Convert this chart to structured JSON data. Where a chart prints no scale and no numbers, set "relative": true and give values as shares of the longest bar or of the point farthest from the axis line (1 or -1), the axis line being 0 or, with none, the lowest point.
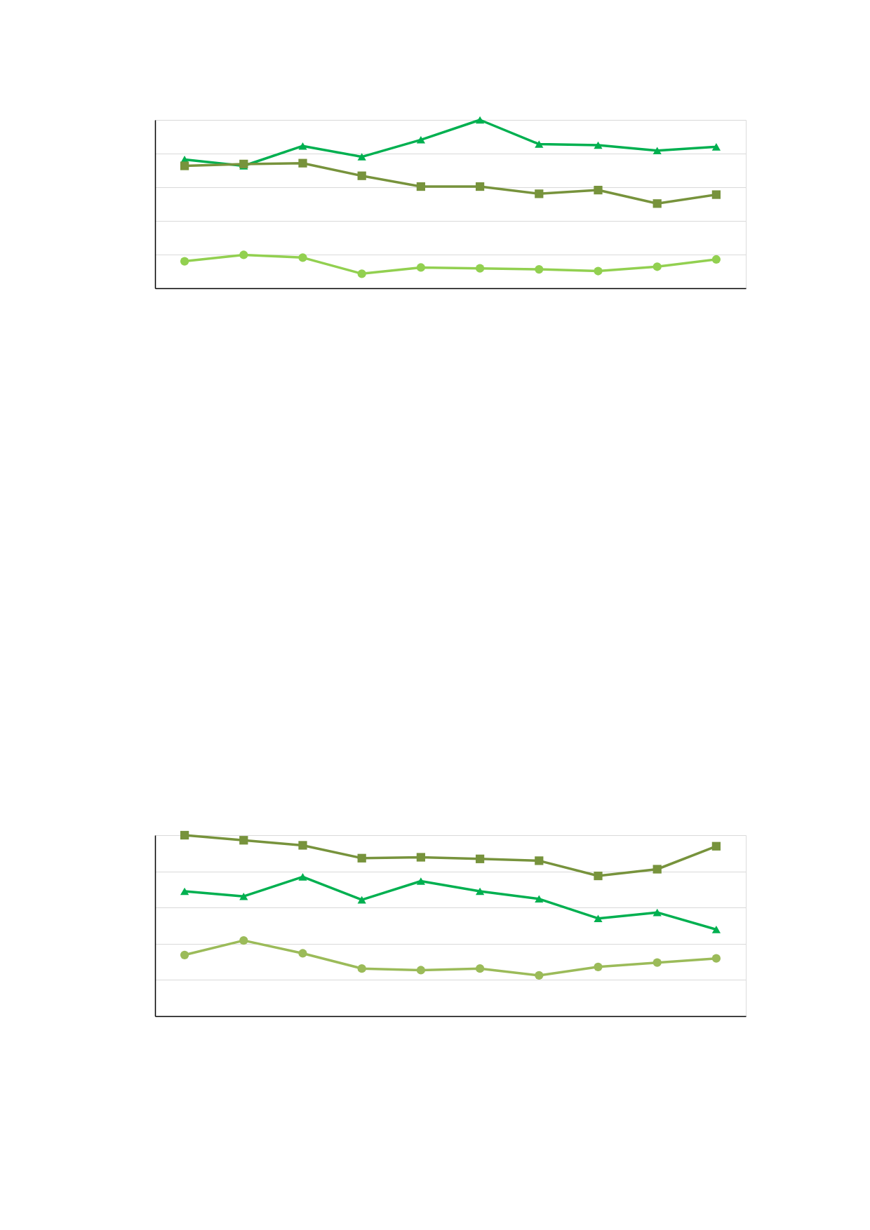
{
  "chart_data": [
    {
      "type": "line",
      "relative": true,
      "grid": "y",
      "categories": [
        null,
        null,
        null,
        null,
        null,
        null,
        null,
        null,
        null,
        null
      ],
      "series": [
        {
          "color": "#00b050",
          "marker": "triangle",
          "values": [
            0.765,
            0.727,
            0.845,
            0.781,
            0.882,
            1,
            0.856,
            0.85,
            0.818,
            0.84
          ]
        },
        {
          "color": "#77933c",
          "marker": "square",
          "values": [
            0.727,
            0.738,
            0.743,
            0.668,
            0.604,
            0.604,
            0.561,
            0.583,
            0.503,
            0.556
          ]
        },
        {
          "color": "#92d050",
          "marker": "circle",
          "values": [
            0.16,
            0.198,
            0.182,
            0.086,
            0.123,
            0.118,
            0.112,
            0.102,
            0.128,
            0.171
          ]
        }
      ]
    },
    {
      "type": "line",
      "relative": true,
      "grid": "y",
      "categories": [
        null,
        null,
        null,
        null,
        null,
        null,
        null,
        null,
        null,
        null
      ],
      "series": [
        {
          "color": "#00b050",
          "marker": "triangle",
          "values": [
            0.69,
            0.662,
            0.77,
            0.643,
            0.746,
            0.69,
            0.648,
            0.54,
            0.573,
            0.479
          ]
        },
        {
          "color": "#77933c",
          "marker": "square",
          "values": [
            1,
            0.972,
            0.944,
            0.873,
            0.878,
            0.869,
            0.859,
            0.775,
            0.812,
            0.939
          ]
        },
        {
          "color": "#9bbb59",
          "marker": "circle",
          "values": [
            0.338,
            0.418,
            0.347,
            0.263,
            0.254,
            0.263,
            0.225,
            0.272,
            0.296,
            0.319
          ]
        }
      ]
    }
  ]
}
